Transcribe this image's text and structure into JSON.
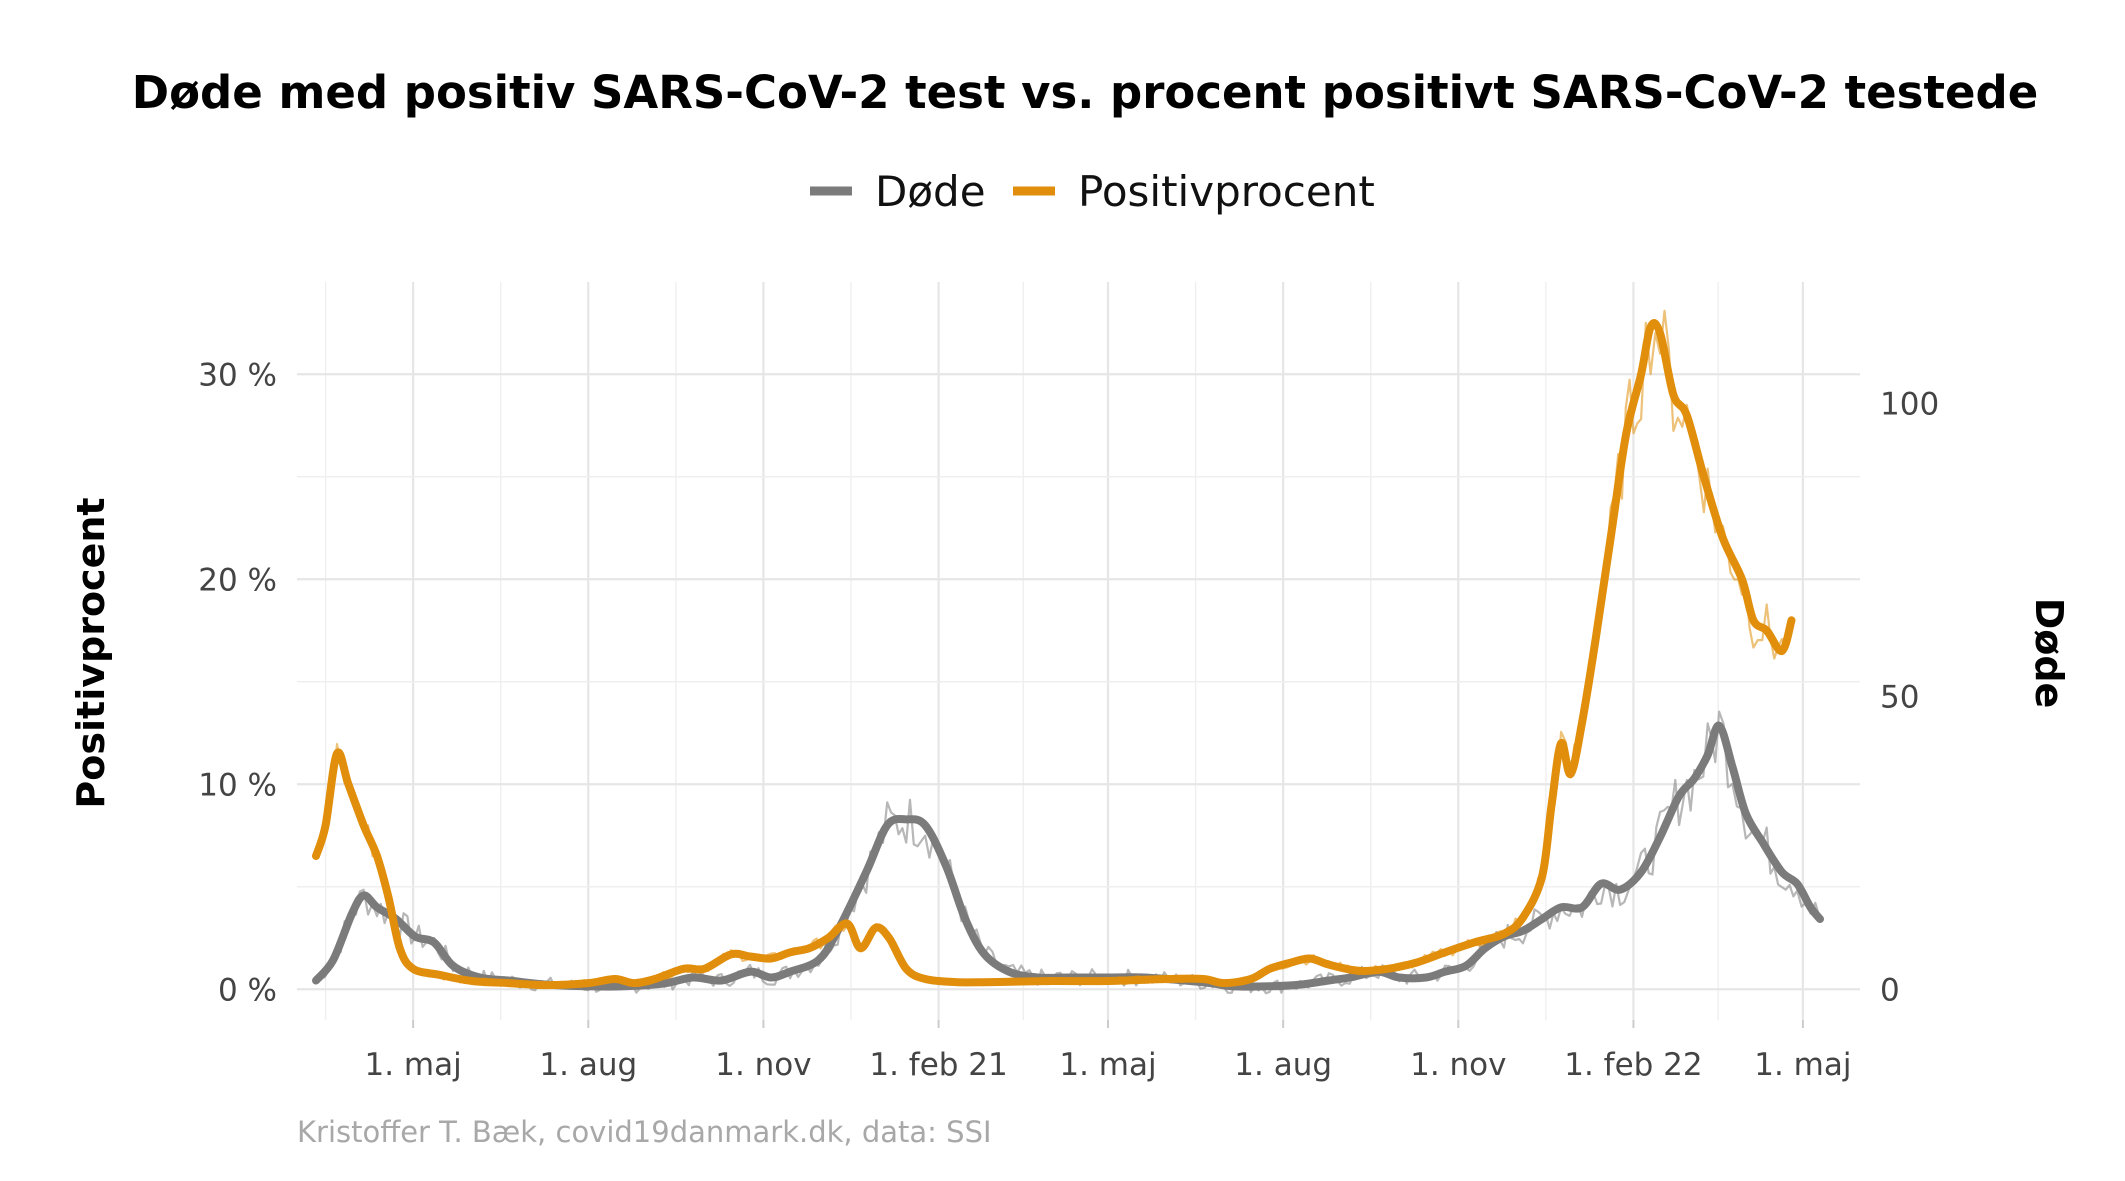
{
  "title": "Døde med positiv SARS-CoV-2 test vs. procent positivt SARS-CoV-2 testede",
  "caption": "Kristoffer T. Bæk, covid19danmark.dk, data: SSI",
  "colors": {
    "dode": "#7b7b7b",
    "positiv": "#e08e0b"
  },
  "chart_data": {
    "type": "line",
    "title": "Døde med positiv SARS-CoV-2 test vs. procent positivt SARS-CoV-2 testede",
    "ylabel": "Positivprocent",
    "y2label": "Døde",
    "xticks": [
      "1. maj",
      "1. aug",
      "1. nov",
      "1. feb 21",
      "1. maj",
      "1. aug",
      "1. nov",
      "1. feb 22",
      "1. maj"
    ],
    "xtick_dates": [
      "2020-05-01",
      "2020-08-01",
      "2020-11-01",
      "2021-02-01",
      "2021-05-01",
      "2021-08-01",
      "2021-11-01",
      "2022-02-01",
      "2022-05-01"
    ],
    "yticks": [
      "0 %",
      "10 %",
      "20 %",
      "30 %"
    ],
    "y2ticks": [
      "0",
      "50",
      "100"
    ],
    "xlim": [
      "2020-03-01",
      "2022-05-31"
    ],
    "ylim": [
      -1.5,
      34.5
    ],
    "y2lim": [
      -5.25,
      120.75
    ],
    "grid": true,
    "legend": "top",
    "series": [
      {
        "name": "Døde",
        "axis": "right",
        "color": "#7b7b7b",
        "points": [
          [
            "2020-03-11",
            1.5
          ],
          [
            "2020-03-20",
            5
          ],
          [
            "2020-03-30",
            13
          ],
          [
            "2020-04-05",
            16
          ],
          [
            "2020-04-12",
            14
          ],
          [
            "2020-04-22",
            12
          ],
          [
            "2020-05-02",
            9
          ],
          [
            "2020-05-12",
            8
          ],
          [
            "2020-05-22",
            4
          ],
          [
            "2020-06-05",
            2
          ],
          [
            "2020-06-20",
            1.5
          ],
          [
            "2020-07-10",
            0.8
          ],
          [
            "2020-08-01",
            0.5
          ],
          [
            "2020-08-20",
            0.5
          ],
          [
            "2020-09-10",
            1
          ],
          [
            "2020-09-25",
            2
          ],
          [
            "2020-10-10",
            1.5
          ],
          [
            "2020-10-25",
            3
          ],
          [
            "2020-11-05",
            2
          ],
          [
            "2020-11-15",
            3
          ],
          [
            "2020-11-30",
            5
          ],
          [
            "2020-12-10",
            10
          ],
          [
            "2020-12-25",
            20
          ],
          [
            "2021-01-05",
            28
          ],
          [
            "2021-01-15",
            29
          ],
          [
            "2021-01-25",
            28
          ],
          [
            "2021-02-05",
            21
          ],
          [
            "2021-02-15",
            12
          ],
          [
            "2021-02-25",
            6
          ],
          [
            "2021-03-10",
            3
          ],
          [
            "2021-03-25",
            2
          ],
          [
            "2021-04-10",
            2
          ],
          [
            "2021-05-01",
            2
          ],
          [
            "2021-05-20",
            2
          ],
          [
            "2021-06-10",
            1.5
          ],
          [
            "2021-06-25",
            1
          ],
          [
            "2021-07-05",
            0.5
          ],
          [
            "2021-07-25",
            0.5
          ],
          [
            "2021-08-10",
            0.8
          ],
          [
            "2021-08-25",
            1.5
          ],
          [
            "2021-09-05",
            2
          ],
          [
            "2021-09-20",
            3
          ],
          [
            "2021-10-01",
            2
          ],
          [
            "2021-10-15",
            2
          ],
          [
            "2021-10-25",
            3
          ],
          [
            "2021-11-05",
            4
          ],
          [
            "2021-11-15",
            7
          ],
          [
            "2021-11-25",
            9
          ],
          [
            "2021-12-05",
            10
          ],
          [
            "2021-12-15",
            12
          ],
          [
            "2021-12-25",
            14
          ],
          [
            "2022-01-05",
            14
          ],
          [
            "2022-01-15",
            18
          ],
          [
            "2022-01-25",
            17
          ],
          [
            "2022-02-05",
            20
          ],
          [
            "2022-02-15",
            26
          ],
          [
            "2022-02-25",
            33
          ],
          [
            "2022-03-05",
            36
          ],
          [
            "2022-03-12",
            40
          ],
          [
            "2022-03-18",
            45
          ],
          [
            "2022-03-25",
            38
          ],
          [
            "2022-04-01",
            30
          ],
          [
            "2022-04-10",
            25
          ],
          [
            "2022-04-20",
            20
          ],
          [
            "2022-04-28",
            18
          ],
          [
            "2022-05-05",
            14
          ],
          [
            "2022-05-10",
            12
          ]
        ]
      },
      {
        "name": "Positivprocent",
        "axis": "left",
        "color": "#e08e0b",
        "points": [
          [
            "2020-03-11",
            6.5
          ],
          [
            "2020-03-16",
            8
          ],
          [
            "2020-03-22",
            11.5
          ],
          [
            "2020-03-28",
            10
          ],
          [
            "2020-04-05",
            8
          ],
          [
            "2020-04-12",
            6.5
          ],
          [
            "2020-04-18",
            4.5
          ],
          [
            "2020-04-24",
            2
          ],
          [
            "2020-05-01",
            1
          ],
          [
            "2020-05-15",
            0.7
          ],
          [
            "2020-06-01",
            0.4
          ],
          [
            "2020-06-20",
            0.3
          ],
          [
            "2020-07-10",
            0.2
          ],
          [
            "2020-08-01",
            0.3
          ],
          [
            "2020-08-15",
            0.5
          ],
          [
            "2020-08-25",
            0.3
          ],
          [
            "2020-09-05",
            0.5
          ],
          [
            "2020-09-20",
            1.0
          ],
          [
            "2020-10-01",
            1.0
          ],
          [
            "2020-10-15",
            1.7
          ],
          [
            "2020-10-25",
            1.6
          ],
          [
            "2020-11-05",
            1.5
          ],
          [
            "2020-11-15",
            1.8
          ],
          [
            "2020-11-25",
            2.0
          ],
          [
            "2020-12-05",
            2.5
          ],
          [
            "2020-12-15",
            3.2
          ],
          [
            "2020-12-22",
            2.0
          ],
          [
            "2020-12-30",
            3.0
          ],
          [
            "2021-01-06",
            2.5
          ],
          [
            "2021-01-15",
            1.0
          ],
          [
            "2021-01-25",
            0.5
          ],
          [
            "2021-02-10",
            0.35
          ],
          [
            "2021-03-01",
            0.35
          ],
          [
            "2021-04-01",
            0.4
          ],
          [
            "2021-05-01",
            0.4
          ],
          [
            "2021-06-01",
            0.5
          ],
          [
            "2021-06-20",
            0.5
          ],
          [
            "2021-07-01",
            0.3
          ],
          [
            "2021-07-15",
            0.5
          ],
          [
            "2021-07-25",
            1.0
          ],
          [
            "2021-08-05",
            1.3
          ],
          [
            "2021-08-15",
            1.5
          ],
          [
            "2021-08-25",
            1.2
          ],
          [
            "2021-09-10",
            0.9
          ],
          [
            "2021-09-25",
            1.0
          ],
          [
            "2021-10-10",
            1.3
          ],
          [
            "2021-10-25",
            1.8
          ],
          [
            "2021-11-10",
            2.3
          ],
          [
            "2021-11-25",
            2.7
          ],
          [
            "2021-12-05",
            3.5
          ],
          [
            "2021-12-15",
            5.5
          ],
          [
            "2021-12-20",
            9
          ],
          [
            "2021-12-25",
            12
          ],
          [
            "2021-12-30",
            10.5
          ],
          [
            "2022-01-05",
            13
          ],
          [
            "2022-01-12",
            17
          ],
          [
            "2022-01-20",
            22
          ],
          [
            "2022-01-28",
            27
          ],
          [
            "2022-02-05",
            30
          ],
          [
            "2022-02-10",
            32.3
          ],
          [
            "2022-02-15",
            32
          ],
          [
            "2022-02-22",
            29
          ],
          [
            "2022-03-01",
            28
          ],
          [
            "2022-03-10",
            25
          ],
          [
            "2022-03-20",
            22
          ],
          [
            "2022-03-30",
            20
          ],
          [
            "2022-04-05",
            18
          ],
          [
            "2022-04-12",
            17.5
          ],
          [
            "2022-04-20",
            16.5
          ],
          [
            "2022-04-25",
            18.0
          ]
        ]
      }
    ]
  }
}
